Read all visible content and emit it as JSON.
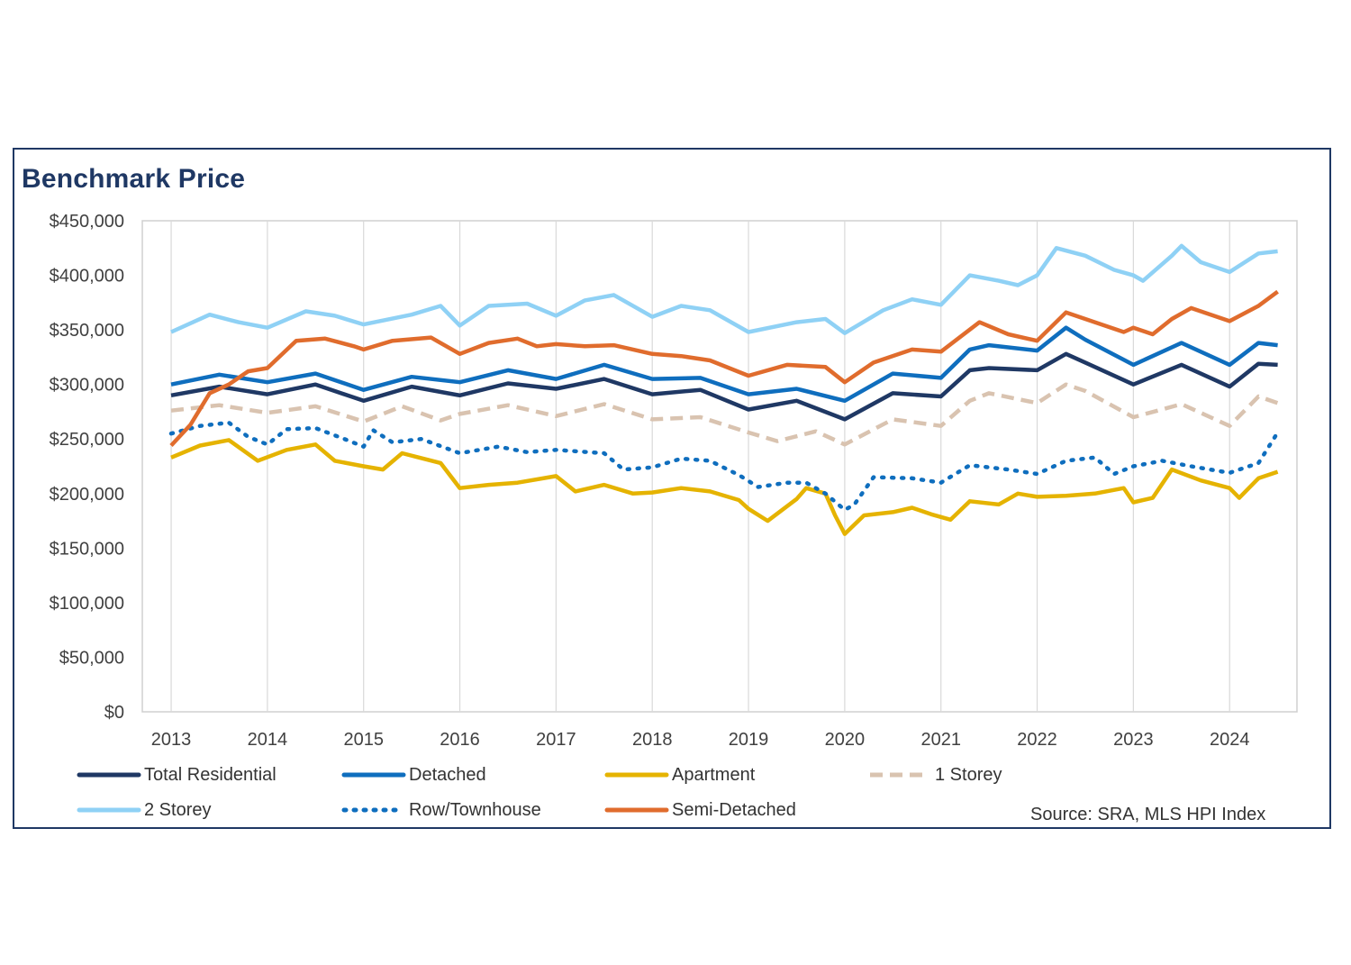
{
  "chart_data": {
    "type": "line",
    "title": "Benchmark Price",
    "xlabel": "",
    "ylabel": "",
    "ylim": [
      0,
      450000
    ],
    "y_ticks": [
      "$0",
      "$50,000",
      "$100,000",
      "$150,000",
      "$200,000",
      "$250,000",
      "$300,000",
      "$350,000",
      "$400,000",
      "$450,000"
    ],
    "x_range": [
      2012.7,
      2024.7
    ],
    "x_ticks": [
      "2013",
      "2014",
      "2015",
      "2016",
      "2017",
      "2018",
      "2019",
      "2020",
      "2021",
      "2022",
      "2023",
      "2024"
    ],
    "grid": "vertical",
    "source": "Source: SRA, MLS HPI Index",
    "series": [
      {
        "name": "Total Residential",
        "color": "#1f3864",
        "style": "solid",
        "points": [
          [
            2013.0,
            290000
          ],
          [
            2013.5,
            298000
          ],
          [
            2014.0,
            291000
          ],
          [
            2014.5,
            300000
          ],
          [
            2015.0,
            285000
          ],
          [
            2015.5,
            298000
          ],
          [
            2016.0,
            290000
          ],
          [
            2016.5,
            301000
          ],
          [
            2017.0,
            296000
          ],
          [
            2017.5,
            305000
          ],
          [
            2018.0,
            291000
          ],
          [
            2018.5,
            295000
          ],
          [
            2019.0,
            277000
          ],
          [
            2019.5,
            285000
          ],
          [
            2020.0,
            268000
          ],
          [
            2020.5,
            292000
          ],
          [
            2021.0,
            289000
          ],
          [
            2021.3,
            313000
          ],
          [
            2021.5,
            315000
          ],
          [
            2022.0,
            313000
          ],
          [
            2022.3,
            328000
          ],
          [
            2022.5,
            320000
          ],
          [
            2023.0,
            300000
          ],
          [
            2023.5,
            318000
          ],
          [
            2024.0,
            298000
          ],
          [
            2024.3,
            319000
          ],
          [
            2024.5,
            318000
          ]
        ]
      },
      {
        "name": "Detached",
        "color": "#0f6ebe",
        "style": "solid",
        "points": [
          [
            2013.0,
            300000
          ],
          [
            2013.5,
            309000
          ],
          [
            2014.0,
            302000
          ],
          [
            2014.5,
            310000
          ],
          [
            2015.0,
            295000
          ],
          [
            2015.5,
            307000
          ],
          [
            2016.0,
            302000
          ],
          [
            2016.5,
            313000
          ],
          [
            2017.0,
            305000
          ],
          [
            2017.5,
            318000
          ],
          [
            2018.0,
            305000
          ],
          [
            2018.5,
            306000
          ],
          [
            2019.0,
            291000
          ],
          [
            2019.5,
            296000
          ],
          [
            2020.0,
            285000
          ],
          [
            2020.5,
            310000
          ],
          [
            2021.0,
            306000
          ],
          [
            2021.3,
            332000
          ],
          [
            2021.5,
            336000
          ],
          [
            2022.0,
            331000
          ],
          [
            2022.3,
            352000
          ],
          [
            2022.5,
            341000
          ],
          [
            2023.0,
            318000
          ],
          [
            2023.5,
            338000
          ],
          [
            2024.0,
            318000
          ],
          [
            2024.3,
            338000
          ],
          [
            2024.5,
            336000
          ]
        ]
      },
      {
        "name": "Apartment",
        "color": "#e5b300",
        "style": "solid",
        "points": [
          [
            2013.0,
            233000
          ],
          [
            2013.3,
            244000
          ],
          [
            2013.6,
            249000
          ],
          [
            2013.9,
            230000
          ],
          [
            2014.2,
            240000
          ],
          [
            2014.5,
            245000
          ],
          [
            2014.7,
            230000
          ],
          [
            2015.0,
            225000
          ],
          [
            2015.2,
            222000
          ],
          [
            2015.4,
            237000
          ],
          [
            2015.8,
            228000
          ],
          [
            2016.0,
            205000
          ],
          [
            2016.3,
            208000
          ],
          [
            2016.6,
            210000
          ],
          [
            2017.0,
            216000
          ],
          [
            2017.2,
            202000
          ],
          [
            2017.5,
            208000
          ],
          [
            2017.8,
            200000
          ],
          [
            2018.0,
            201000
          ],
          [
            2018.3,
            205000
          ],
          [
            2018.6,
            202000
          ],
          [
            2018.9,
            194000
          ],
          [
            2019.0,
            186000
          ],
          [
            2019.2,
            175000
          ],
          [
            2019.5,
            195000
          ],
          [
            2019.6,
            205000
          ],
          [
            2019.8,
            200000
          ],
          [
            2019.9,
            180000
          ],
          [
            2020.0,
            163000
          ],
          [
            2020.2,
            180000
          ],
          [
            2020.5,
            183000
          ],
          [
            2020.7,
            187000
          ],
          [
            2020.9,
            181000
          ],
          [
            2021.1,
            176000
          ],
          [
            2021.3,
            193000
          ],
          [
            2021.6,
            190000
          ],
          [
            2021.8,
            200000
          ],
          [
            2022.0,
            197000
          ],
          [
            2022.3,
            198000
          ],
          [
            2022.6,
            200000
          ],
          [
            2022.9,
            205000
          ],
          [
            2023.0,
            192000
          ],
          [
            2023.2,
            196000
          ],
          [
            2023.4,
            222000
          ],
          [
            2023.7,
            212000
          ],
          [
            2024.0,
            205000
          ],
          [
            2024.1,
            196000
          ],
          [
            2024.3,
            214000
          ],
          [
            2024.5,
            220000
          ]
        ]
      },
      {
        "name": "1 Storey",
        "color": "#d9c3b0",
        "style": "dashed",
        "points": [
          [
            2013.0,
            276000
          ],
          [
            2013.5,
            281000
          ],
          [
            2014.0,
            274000
          ],
          [
            2014.5,
            280000
          ],
          [
            2015.0,
            266000
          ],
          [
            2015.4,
            280000
          ],
          [
            2015.8,
            267000
          ],
          [
            2016.0,
            273000
          ],
          [
            2016.5,
            281000
          ],
          [
            2017.0,
            271000
          ],
          [
            2017.5,
            282000
          ],
          [
            2018.0,
            268000
          ],
          [
            2018.5,
            270000
          ],
          [
            2019.0,
            256000
          ],
          [
            2019.3,
            248000
          ],
          [
            2019.7,
            257000
          ],
          [
            2020.0,
            245000
          ],
          [
            2020.5,
            268000
          ],
          [
            2021.0,
            262000
          ],
          [
            2021.3,
            285000
          ],
          [
            2021.5,
            292000
          ],
          [
            2022.0,
            283000
          ],
          [
            2022.3,
            300000
          ],
          [
            2022.5,
            294000
          ],
          [
            2023.0,
            270000
          ],
          [
            2023.5,
            282000
          ],
          [
            2024.0,
            262000
          ],
          [
            2024.3,
            289000
          ],
          [
            2024.5,
            283000
          ]
        ]
      },
      {
        "name": "2 Storey",
        "color": "#8fd1f5",
        "style": "solid",
        "points": [
          [
            2013.0,
            348000
          ],
          [
            2013.4,
            364000
          ],
          [
            2013.7,
            357000
          ],
          [
            2014.0,
            352000
          ],
          [
            2014.4,
            367000
          ],
          [
            2014.7,
            363000
          ],
          [
            2015.0,
            355000
          ],
          [
            2015.5,
            364000
          ],
          [
            2015.8,
            372000
          ],
          [
            2016.0,
            354000
          ],
          [
            2016.3,
            372000
          ],
          [
            2016.7,
            374000
          ],
          [
            2017.0,
            363000
          ],
          [
            2017.3,
            377000
          ],
          [
            2017.6,
            382000
          ],
          [
            2018.0,
            362000
          ],
          [
            2018.3,
            372000
          ],
          [
            2018.6,
            368000
          ],
          [
            2019.0,
            348000
          ],
          [
            2019.5,
            357000
          ],
          [
            2019.8,
            360000
          ],
          [
            2020.0,
            347000
          ],
          [
            2020.4,
            368000
          ],
          [
            2020.7,
            378000
          ],
          [
            2021.0,
            373000
          ],
          [
            2021.3,
            400000
          ],
          [
            2021.6,
            395000
          ],
          [
            2021.8,
            391000
          ],
          [
            2022.0,
            400000
          ],
          [
            2022.2,
            425000
          ],
          [
            2022.5,
            418000
          ],
          [
            2022.8,
            405000
          ],
          [
            2023.0,
            400000
          ],
          [
            2023.1,
            395000
          ],
          [
            2023.4,
            418000
          ],
          [
            2023.5,
            427000
          ],
          [
            2023.7,
            412000
          ],
          [
            2024.0,
            403000
          ],
          [
            2024.3,
            420000
          ],
          [
            2024.5,
            422000
          ]
        ]
      },
      {
        "name": "Row/Townhouse",
        "color": "#0f6ebe",
        "style": "dotted",
        "points": [
          [
            2013.0,
            255000
          ],
          [
            2013.3,
            262000
          ],
          [
            2013.6,
            265000
          ],
          [
            2013.8,
            252000
          ],
          [
            2014.0,
            245000
          ],
          [
            2014.2,
            259000
          ],
          [
            2014.5,
            260000
          ],
          [
            2014.8,
            250000
          ],
          [
            2015.0,
            243000
          ],
          [
            2015.1,
            258000
          ],
          [
            2015.3,
            247000
          ],
          [
            2015.6,
            250000
          ],
          [
            2016.0,
            237000
          ],
          [
            2016.4,
            243000
          ],
          [
            2016.7,
            238000
          ],
          [
            2017.0,
            240000
          ],
          [
            2017.5,
            237000
          ],
          [
            2017.7,
            222000
          ],
          [
            2018.0,
            224000
          ],
          [
            2018.3,
            232000
          ],
          [
            2018.6,
            230000
          ],
          [
            2018.9,
            217000
          ],
          [
            2019.1,
            206000
          ],
          [
            2019.4,
            210000
          ],
          [
            2019.6,
            210000
          ],
          [
            2019.8,
            200000
          ],
          [
            2020.0,
            185000
          ],
          [
            2020.1,
            190000
          ],
          [
            2020.3,
            215000
          ],
          [
            2020.7,
            214000
          ],
          [
            2021.0,
            210000
          ],
          [
            2021.3,
            226000
          ],
          [
            2021.7,
            222000
          ],
          [
            2022.0,
            218000
          ],
          [
            2022.3,
            230000
          ],
          [
            2022.6,
            233000
          ],
          [
            2022.8,
            218000
          ],
          [
            2023.0,
            225000
          ],
          [
            2023.3,
            230000
          ],
          [
            2023.6,
            225000
          ],
          [
            2024.0,
            219000
          ],
          [
            2024.3,
            228000
          ],
          [
            2024.5,
            256000
          ]
        ]
      },
      {
        "name": "Semi-Detached",
        "color": "#e06c2d",
        "style": "solid",
        "points": [
          [
            2013.0,
            244000
          ],
          [
            2013.2,
            263000
          ],
          [
            2013.4,
            292000
          ],
          [
            2013.6,
            300000
          ],
          [
            2013.8,
            312000
          ],
          [
            2014.0,
            315000
          ],
          [
            2014.3,
            340000
          ],
          [
            2014.6,
            342000
          ],
          [
            2014.9,
            335000
          ],
          [
            2015.0,
            332000
          ],
          [
            2015.3,
            340000
          ],
          [
            2015.7,
            343000
          ],
          [
            2016.0,
            328000
          ],
          [
            2016.3,
            338000
          ],
          [
            2016.6,
            342000
          ],
          [
            2016.8,
            335000
          ],
          [
            2017.0,
            337000
          ],
          [
            2017.3,
            335000
          ],
          [
            2017.6,
            336000
          ],
          [
            2018.0,
            328000
          ],
          [
            2018.3,
            326000
          ],
          [
            2018.6,
            322000
          ],
          [
            2019.0,
            308000
          ],
          [
            2019.4,
            318000
          ],
          [
            2019.8,
            316000
          ],
          [
            2020.0,
            302000
          ],
          [
            2020.3,
            320000
          ],
          [
            2020.7,
            332000
          ],
          [
            2021.0,
            330000
          ],
          [
            2021.4,
            357000
          ],
          [
            2021.7,
            346000
          ],
          [
            2022.0,
            340000
          ],
          [
            2022.3,
            366000
          ],
          [
            2022.6,
            357000
          ],
          [
            2022.9,
            348000
          ],
          [
            2023.0,
            352000
          ],
          [
            2023.2,
            346000
          ],
          [
            2023.4,
            360000
          ],
          [
            2023.6,
            370000
          ],
          [
            2024.0,
            358000
          ],
          [
            2024.3,
            372000
          ],
          [
            2024.5,
            385000
          ]
        ]
      }
    ]
  },
  "legend": {
    "items": [
      "Total Residential",
      "Detached",
      "Apartment",
      "1 Storey",
      "2 Storey",
      "Row/Townhouse",
      "Semi-Detached"
    ]
  }
}
